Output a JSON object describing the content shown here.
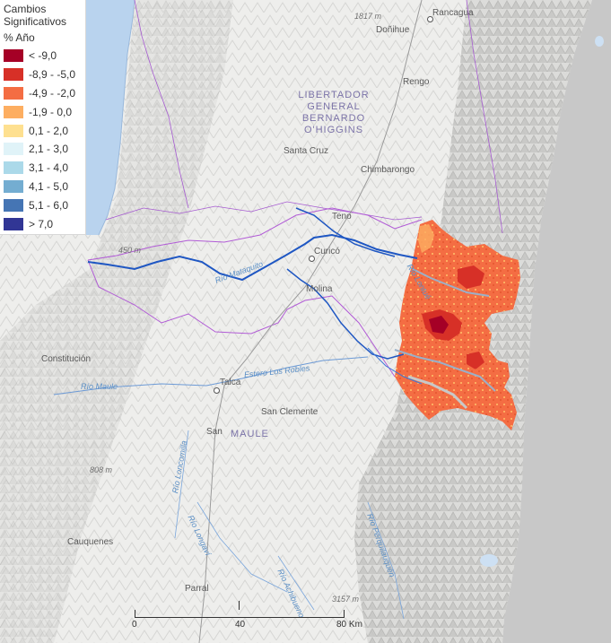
{
  "legend": {
    "title": "Cambios Significativos",
    "unit": "% Año",
    "items": [
      {
        "label": "< -9,0",
        "color": "#a50026"
      },
      {
        "label": "-8,9 - -5,0",
        "color": "#d73027"
      },
      {
        "label": "-4,9 - -2,0",
        "color": "#f46d43"
      },
      {
        "label": "-1,9 - 0,0",
        "color": "#fdae61"
      },
      {
        "label": "0,1 - 2,0",
        "color": "#fee090"
      },
      {
        "label": "2,1 - 3,0",
        "color": "#e0f3f8"
      },
      {
        "label": "3,1 - 4,0",
        "color": "#abd9e9"
      },
      {
        "label": "4,1 - 5,0",
        "color": "#74add1"
      },
      {
        "label": "5,1 - 6,0",
        "color": "#4575b4"
      },
      {
        "label": "> 7,0",
        "color": "#313695"
      }
    ]
  },
  "places": {
    "rancagua": "Rancagua",
    "donihue": "Doñihue",
    "rengo": "Rengo",
    "santa_cruz": "Santa Cruz",
    "chimbarongo": "Chimbarongo",
    "teno": "Teno",
    "curico": "Curicó",
    "molina": "Molina",
    "constitucion": "Constitución",
    "talca": "Talca",
    "san_clemente": "San Clemente",
    "san_javier": "San",
    "cauquenes": "Cauquenes",
    "parral": "Parral"
  },
  "regions": {
    "ohiggins": "LIBERTADOR GENERAL BERNARDO O'HIGGINS",
    "maule": "MAULE"
  },
  "rivers": {
    "maule": "Río Maule",
    "mataquito": "Río Mataquito",
    "estero_los_robles": "Estero Los Robles",
    "loncomilla": "Río Loncomilla",
    "longavi": "Río Longaví",
    "achibueno": "Río Achibueno",
    "perquilauquen": "Río Perquilauquén",
    "lontue": "Río Lontué"
  },
  "elevations": {
    "e1817": "1817 m",
    "e450": "450 m",
    "e808": "808 m",
    "e3157": "3157 m"
  },
  "scale": {
    "labels": [
      "0",
      "40",
      "80 Km"
    ]
  },
  "colors": {
    "sea": "#b9d3ee",
    "andes_gray": "#c9c9c9",
    "river_main": "#1f57c3",
    "region_border": "#a65bd1",
    "basin_border": "#b15bd6"
  }
}
